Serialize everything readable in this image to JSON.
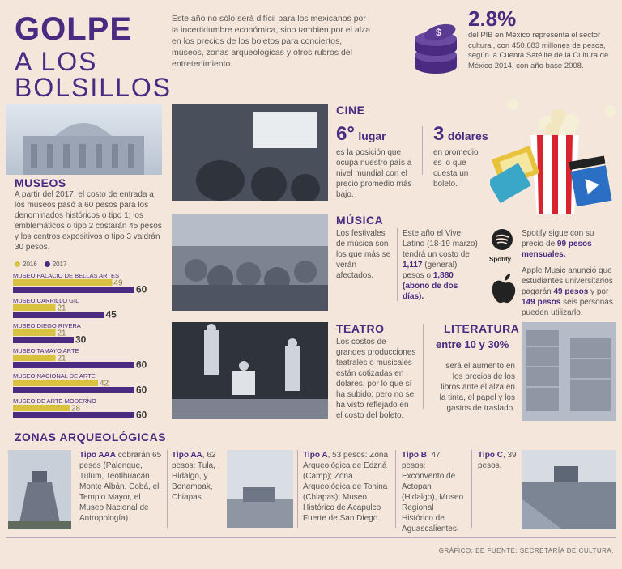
{
  "title": {
    "line1": "GOLPE",
    "line2": "A LOS",
    "line3": "BOLSILLOS"
  },
  "intro": "Este año no sólo será difícil para los mexicanos por la incertidumbre económica, sino también por el alza en los precios de los boletos para conciertos, museos, zonas arqueológicas y otros rubros del entretenimiento.",
  "pib": {
    "value": "2.8%",
    "text": "del PIB en México representa el sector cultural, con 450,683 millones de pesos, según la Cuenta Satélite de la Cultura de México 2014, con año base 2008."
  },
  "museos": {
    "title": "MUSEOS",
    "text": "A partir del 2017, el costo de entrada a los museos pasó a 60 pesos para los denominados históricos o tipo 1; los emblemáticos o tipo 2 costarán 45 pesos y los centros expositivos o tipo 3 valdrán 30 pesos."
  },
  "chart_data": {
    "type": "bar",
    "orientation": "horizontal",
    "categories": [
      "MUSEO PALACIO DE BELLAS ARTES",
      "MUSEO CARRILLO GIL",
      "MUSEO DIEGO RIVERA",
      "MUSEO TAMAYO ARTE",
      "MUSEO NACIONAL DE ARTE",
      "MUSEO DE ARTE MODERNO"
    ],
    "series": [
      {
        "name": "2016",
        "color": "#d9c23f",
        "values": [
          49,
          21,
          21,
          21,
          42,
          28
        ]
      },
      {
        "name": "2017",
        "color": "#4b2a82",
        "values": [
          60,
          45,
          30,
          60,
          60,
          60
        ]
      }
    ],
    "xlim": [
      0,
      60
    ]
  },
  "cine": {
    "title": "CINE",
    "stat1_big": "6°",
    "stat1_small": "lugar",
    "stat1_text": "es la posición que ocupa nuestro país a nivel mundial con el precio promedio más bajo.",
    "stat2_big": "3",
    "stat2_small": "dólares",
    "stat2_text": "en promedio es lo que cuesta un boleto."
  },
  "musica": {
    "title": "MÚSICA",
    "text": "Los festivales de música son los que más se verán afectados.",
    "vive_pre": "Este año el Vive Latino (18-19 marzo) tendrá un costo de",
    "vive_val1": "1,117",
    "vive_mid": "(general) pesos o",
    "vive_val2": "1,880 (abono de dos días).",
    "spotify_pre": "Spotify sigue con su precio de",
    "spotify_val": "99 pesos mensuales.",
    "spotify_logo": "Spotify",
    "apple_pre": "Apple Music anunció que estudiantes universitarios pagarán",
    "apple_val1": "49 pesos",
    "apple_mid": "y por",
    "apple_val2": "149 pesos",
    "apple_post": "seis personas pueden utilizarlo."
  },
  "teatro": {
    "title": "TEATRO",
    "text": "Los costos de grandes producciones teatrales o musicales están cotizadas en dólares, por lo que sí ha subido; pero no se ha visto reflejado en el costo del boleto."
  },
  "literatura": {
    "title": "LITERATURA",
    "range": "entre 10 y 30%",
    "text": "será el aumento en los precios de los libros ante el alza en la tinta, el papel y los gastos de traslado."
  },
  "zonas": {
    "title": "ZONAS ARQUEOLÓGICAS",
    "items": [
      {
        "label": "Tipo AAA",
        "text": "cobrarán 65 pesos (Palenque, Tulum, Teotihuacán, Monte Albán, Cobá, el Templo Mayor, el Museo Nacional de Antropología)."
      },
      {
        "label": "Tipo AA",
        "text": ", 62 pesos: Tula, Hidalgo, y Bonampak, Chiapas."
      },
      {
        "label": "Tipo A",
        "text": ", 53 pesos: Zona Arqueológica de Edzná (Camp); Zona Arqueológica de Tonina (Chiapas); Museo Histórico de Acapulco Fuerte de San Diego."
      },
      {
        "label": "Tipo B",
        "text": ", 47 pesos: Exconvento de Actopan (Hidalgo), Museo Regional Histórico de Aguascalientes."
      },
      {
        "label": "Tipo C",
        "text": ", 39 pesos."
      }
    ]
  },
  "footer": "GRÁFICO: EE   FUENTE:  SECRETARÍA DE CULTURA.",
  "icons": [
    "coins-icon",
    "popcorn-icon",
    "spotify-icon",
    "apple-icon"
  ]
}
